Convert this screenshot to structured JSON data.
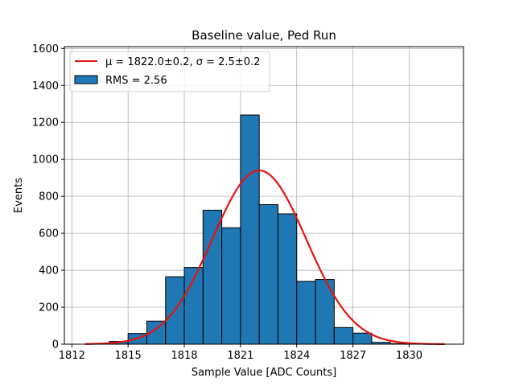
{
  "chart_data": {
    "type": "bar",
    "title": "Baseline value, Ped Run",
    "xlabel": "Sample Value [ADC Counts]",
    "ylabel": "Events",
    "xlim": [
      1811.6,
      1832.9
    ],
    "ylim": [
      0,
      1610
    ],
    "xticks": [
      1812,
      1815,
      1818,
      1821,
      1824,
      1827,
      1830
    ],
    "yticks": [
      0,
      200,
      400,
      600,
      800,
      1000,
      1200,
      1400,
      1600
    ],
    "grid": true,
    "legend_position": "top-left",
    "bar_color": "#1f77b4",
    "fit_color": "#e8120c",
    "bins": [
      {
        "x0": 1813,
        "x1": 1814,
        "value": 2
      },
      {
        "x0": 1814,
        "x1": 1815,
        "value": 15
      },
      {
        "x0": 1815,
        "x1": 1816,
        "value": 58
      },
      {
        "x0": 1816,
        "x1": 1817,
        "value": 125
      },
      {
        "x0": 1817,
        "x1": 1818,
        "value": 365
      },
      {
        "x0": 1818,
        "x1": 1819,
        "value": 415
      },
      {
        "x0": 1819,
        "x1": 1820,
        "value": 725
      },
      {
        "x0": 1820,
        "x1": 1821,
        "value": 630
      },
      {
        "x0": 1821,
        "x1": 1822,
        "value": 1240
      },
      {
        "x0": 1822,
        "x1": 1823,
        "value": 755
      },
      {
        "x0": 1823,
        "x1": 1824,
        "value": 705
      },
      {
        "x0": 1824,
        "x1": 1825,
        "value": 340
      },
      {
        "x0": 1825,
        "x1": 1826,
        "value": 350
      },
      {
        "x0": 1826,
        "x1": 1827,
        "value": 90
      },
      {
        "x0": 1827,
        "x1": 1828,
        "value": 60
      },
      {
        "x0": 1828,
        "x1": 1829,
        "value": 10
      },
      {
        "x0": 1829,
        "x1": 1830,
        "value": 3
      }
    ],
    "fit": {
      "type": "gaussian",
      "mu": 1822.0,
      "sigma": 2.5,
      "amplitude": 940,
      "x_range": [
        1812.7,
        1831.9
      ]
    },
    "legend": {
      "fit_label": "μ = 1822.0±0.2, σ = 2.5±0.2",
      "hist_label": "RMS = 2.56"
    }
  }
}
